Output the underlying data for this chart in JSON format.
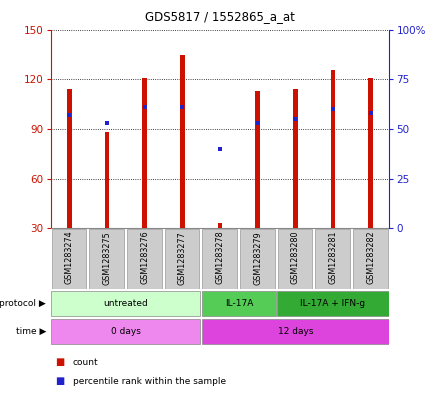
{
  "title": "GDS5817 / 1552865_a_at",
  "samples": [
    "GSM1283274",
    "GSM1283275",
    "GSM1283276",
    "GSM1283277",
    "GSM1283278",
    "GSM1283279",
    "GSM1283280",
    "GSM1283281",
    "GSM1283282"
  ],
  "counts": [
    114,
    88,
    121,
    135,
    33,
    113,
    114,
    126,
    121
  ],
  "percentile_ranks": [
    57,
    53,
    61,
    61,
    40,
    53,
    55,
    60,
    58
  ],
  "ylim_left": [
    30,
    150
  ],
  "ylim_right": [
    0,
    100
  ],
  "yticks_left": [
    30,
    60,
    90,
    120,
    150
  ],
  "yticks_right": [
    0,
    25,
    50,
    75,
    100
  ],
  "yticklabels_right": [
    "0",
    "25",
    "50",
    "75",
    "100%"
  ],
  "bar_color": "#cc1100",
  "dot_color": "#2222cc",
  "bar_baseline": 30,
  "bar_width": 0.12,
  "protocol_groups": [
    {
      "label": "untreated",
      "start": 0,
      "end": 4,
      "color": "#ccffcc"
    },
    {
      "label": "IL-17A",
      "start": 4,
      "end": 6,
      "color": "#55cc55"
    },
    {
      "label": "IL-17A + IFN-g",
      "start": 6,
      "end": 9,
      "color": "#33aa33"
    }
  ],
  "time_groups": [
    {
      "label": "0 days",
      "start": 0,
      "end": 4,
      "color": "#ee88ee"
    },
    {
      "label": "12 days",
      "start": 4,
      "end": 9,
      "color": "#dd44dd"
    }
  ],
  "bg_color": "#ffffff",
  "plot_bg": "#ffffff",
  "tick_color_left": "#cc1100",
  "tick_color_right": "#2222cc",
  "label_cell_color": "#cccccc",
  "label_cell_edge": "#999999"
}
